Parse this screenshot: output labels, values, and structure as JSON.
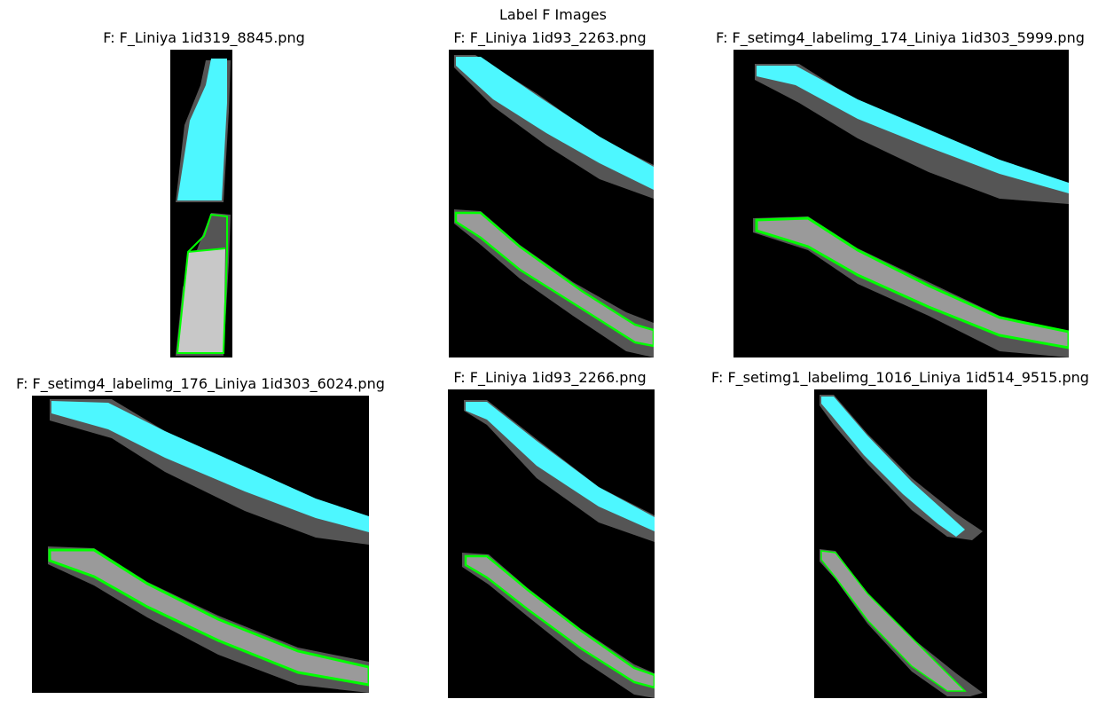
{
  "figure": {
    "title": "Label F Images"
  },
  "panels": [
    {
      "title": "F: F_Liniya 1id319_8845.png"
    },
    {
      "title": "F: F_Liniya 1id93_2263.png"
    },
    {
      "title": "F: F_setimg4_labelimg_174_Liniya 1id303_5999.png"
    },
    {
      "title": "F: F_setimg4_labelimg_176_Liniya 1id303_6024.png"
    },
    {
      "title": "F: F_Liniya 1id93_2266.png"
    },
    {
      "title": "F: F_setimg1_labelimg_1016_Liniya 1id514_9515.png"
    }
  ],
  "colors": {
    "background": "#000000",
    "mask_fill": "#4df7ff",
    "outline": "#00ff00",
    "halo_gray": "#555555",
    "object_gray": "#9a9a9a"
  }
}
